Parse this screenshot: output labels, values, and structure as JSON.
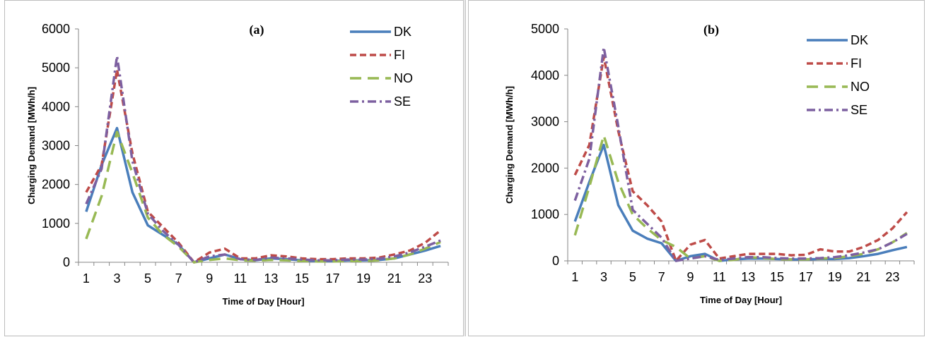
{
  "chart_data": [
    {
      "type": "line",
      "title": "(a)",
      "xlabel": "Time of Day [Hour]",
      "ylabel": "Charging Demand [MWh/h]",
      "ylim": [
        0,
        6000
      ],
      "yticks": [
        0,
        1000,
        2000,
        3000,
        4000,
        5000,
        6000
      ],
      "x": [
        1,
        2,
        3,
        4,
        5,
        6,
        7,
        8,
        9,
        10,
        11,
        12,
        13,
        14,
        15,
        16,
        17,
        18,
        19,
        20,
        21,
        22,
        23,
        24
      ],
      "xtick_labels": [
        "1",
        "3",
        "5",
        "7",
        "9",
        "11",
        "13",
        "15",
        "17",
        "19",
        "21",
        "23"
      ],
      "legend_position": "top-right",
      "grid": false,
      "series": [
        {
          "name": "DK",
          "color": "#4a7ebb",
          "dash": "solid",
          "values": [
            1300,
            2500,
            3450,
            1800,
            950,
            700,
            450,
            0,
            100,
            200,
            80,
            50,
            100,
            80,
            50,
            30,
            30,
            50,
            50,
            60,
            100,
            200,
            300,
            420
          ]
        },
        {
          "name": "FI",
          "color": "#be4b48",
          "dash": "short-dash",
          "values": [
            1800,
            2500,
            4950,
            2800,
            1300,
            900,
            500,
            0,
            250,
            350,
            100,
            100,
            180,
            150,
            100,
            80,
            80,
            100,
            100,
            120,
            200,
            300,
            500,
            820
          ]
        },
        {
          "name": "NO",
          "color": "#98b954",
          "dash": "long-dash",
          "values": [
            600,
            1700,
            3350,
            2300,
            1150,
            700,
            400,
            0,
            60,
            100,
            50,
            40,
            60,
            50,
            30,
            20,
            20,
            30,
            30,
            50,
            100,
            200,
            350,
            520
          ]
        },
        {
          "name": "SE",
          "color": "#7d60a0",
          "dash": "dash-dot",
          "values": [
            1500,
            2400,
            5300,
            2600,
            1250,
            800,
            450,
            0,
            150,
            200,
            80,
            60,
            120,
            100,
            70,
            50,
            50,
            70,
            70,
            90,
            150,
            250,
            400,
            560
          ]
        }
      ]
    },
    {
      "type": "line",
      "title": "(b)",
      "xlabel": "Time of Day [Hour]",
      "ylabel": "Charging Demand [MWh/h]",
      "ylim": [
        0,
        5000
      ],
      "yticks": [
        0,
        1000,
        2000,
        3000,
        4000,
        5000
      ],
      "x": [
        1,
        2,
        3,
        4,
        5,
        6,
        7,
        8,
        9,
        10,
        11,
        12,
        13,
        14,
        15,
        16,
        17,
        18,
        19,
        20,
        21,
        22,
        23,
        24
      ],
      "xtick_labels": [
        "1",
        "3",
        "5",
        "7",
        "9",
        "11",
        "13",
        "15",
        "17",
        "19",
        "21",
        "23"
      ],
      "legend_position": "top-right",
      "grid": false,
      "series": [
        {
          "name": "DK",
          "color": "#4a7ebb",
          "dash": "solid",
          "values": [
            850,
            1700,
            2500,
            1200,
            650,
            480,
            380,
            0,
            100,
            150,
            0,
            30,
            50,
            50,
            40,
            30,
            30,
            40,
            40,
            60,
            100,
            150,
            230,
            300
          ]
        },
        {
          "name": "FI",
          "color": "#be4b48",
          "dash": "short-dash",
          "values": [
            1850,
            2500,
            4400,
            2800,
            1500,
            1200,
            850,
            0,
            350,
            450,
            50,
            100,
            150,
            150,
            150,
            120,
            130,
            250,
            200,
            200,
            300,
            450,
            700,
            1050
          ]
        },
        {
          "name": "NO",
          "color": "#98b954",
          "dash": "long-dash",
          "values": [
            550,
            1600,
            2700,
            1700,
            1000,
            700,
            450,
            300,
            50,
            100,
            0,
            20,
            80,
            60,
            40,
            30,
            30,
            50,
            60,
            100,
            150,
            250,
            400,
            600
          ]
        },
        {
          "name": "SE",
          "color": "#7d60a0",
          "dash": "dash-dot",
          "values": [
            1300,
            2200,
            4600,
            2900,
            1100,
            800,
            500,
            0,
            50,
            100,
            20,
            50,
            80,
            80,
            60,
            50,
            50,
            60,
            80,
            120,
            180,
            250,
            400,
            580
          ]
        }
      ]
    }
  ]
}
